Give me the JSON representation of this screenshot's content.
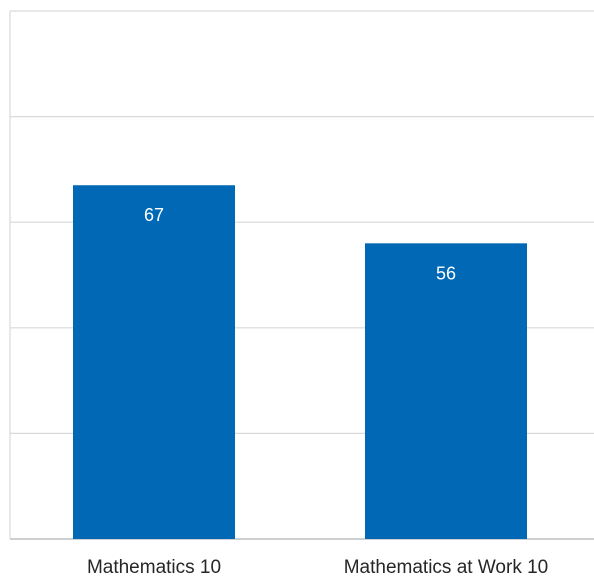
{
  "chart_data": {
    "type": "bar",
    "categories": [
      "Mathematics 10",
      "Mathematics at Work 10"
    ],
    "values": [
      67,
      56
    ],
    "ylim": [
      0,
      100
    ],
    "grid": true,
    "data_labels": true,
    "colors": {
      "bar": "#0068B5",
      "grid": "#d9d9d9",
      "axis": "#bfbfbf",
      "label_text": "#ffffff",
      "category_text": "#262626"
    }
  }
}
